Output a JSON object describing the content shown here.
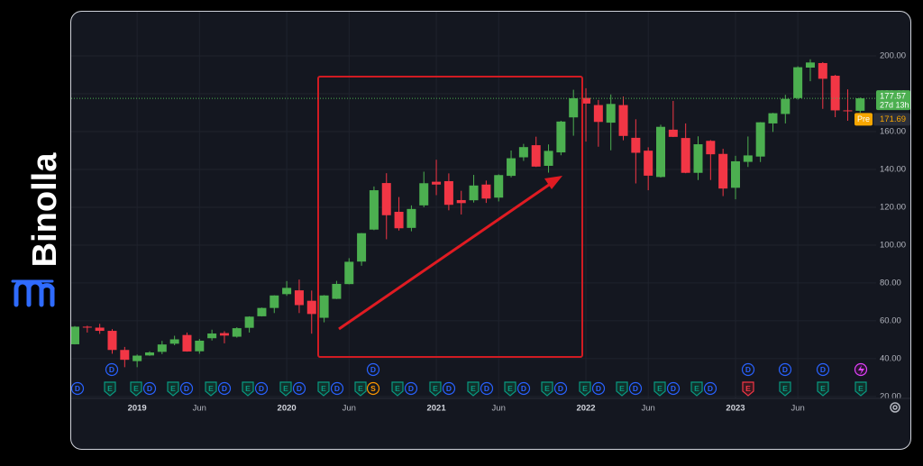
{
  "brand": "Binolla",
  "chart_data": {
    "type": "candlestick",
    "categories": [
      null,
      null,
      null,
      null,
      null,
      null,
      null,
      null,
      null,
      null,
      null,
      null,
      null,
      null,
      null,
      null,
      null,
      null,
      null,
      null,
      null,
      null,
      null,
      null,
      null,
      null,
      null,
      null,
      null,
      null,
      null,
      null,
      null,
      null,
      null,
      null,
      null,
      null,
      null,
      null,
      null,
      null,
      null,
      null,
      null,
      null,
      null,
      null,
      null,
      null,
      null,
      null,
      null,
      null,
      null,
      null,
      null,
      null,
      null,
      null,
      null,
      null,
      null,
      null
    ],
    "open": [
      47.6,
      56.9,
      56.4,
      54.7,
      44.6,
      38.7,
      41.7,
      43.6,
      47.9,
      52.5,
      43.9,
      50.8,
      53.5,
      51.6,
      56.3,
      62.4,
      66.8,
      74.1,
      76.1,
      70.6,
      61.6,
      71.6,
      79.4,
      91.3,
      108.2,
      132.8,
      117.6,
      109.1,
      121.0,
      133.5,
      133.8,
      123.8,
      123.7,
      132.0,
      125.1,
      136.6,
      146.4,
      152.8,
      141.9,
      149.0,
      167.5,
      177.8,
      174.0,
      164.7,
      174.0,
      156.7,
      149.9,
      136.0,
      161.0,
      156.6,
      138.2,
      155.1,
      148.2,
      130.3,
      144.0,
      146.8,
      164.3,
      169.3,
      177.7,
      193.8,
      196.2,
      189.5,
      171.2,
      171.0
    ],
    "high": [
      57.2,
      57.4,
      58.4,
      55.6,
      46.2,
      42.2,
      43.9,
      49.4,
      52.1,
      53.8,
      50.4,
      55.3,
      54.5,
      56.6,
      62.4,
      67.0,
      73.5,
      81.0,
      81.8,
      76.0,
      73.6,
      81.1,
      93.1,
      106.4,
      131.0,
      138.0,
      125.4,
      121.0,
      138.8,
      145.1,
      137.9,
      128.7,
      137.1,
      134.1,
      137.4,
      150.0,
      153.5,
      157.3,
      153.2,
      165.7,
      182.1,
      182.9,
      176.7,
      179.6,
      178.5,
      166.5,
      151.7,
      163.6,
      176.2,
      164.3,
      157.5,
      155.5,
      150.9,
      147.2,
      157.4,
      165.0,
      169.9,
      179.4,
      194.5,
      198.2,
      196.7,
      190.0,
      182.3,
      178.0
    ],
    "low": [
      47.5,
      53.8,
      53.1,
      42.6,
      35.5,
      35.5,
      41.5,
      42.4,
      47.1,
      43.7,
      42.6,
      49.6,
      48.1,
      51.1,
      53.8,
      62.3,
      64.1,
      73.2,
      64.1,
      53.2,
      59.2,
      71.5,
      79.3,
      89.1,
      107.9,
      103.1,
      107.7,
      107.3,
      120.0,
      126.4,
      118.4,
      116.2,
      122.5,
      122.3,
      123.1,
      135.8,
      144.5,
      141.3,
      138.3,
      147.5,
      157.8,
      154.7,
      152.0,
      150.1,
      155.4,
      132.6,
      129.0,
      135.7,
      157.1,
      138.0,
      134.4,
      134.4,
      125.9,
      124.2,
      141.3,
      143.9,
      159.8,
      164.3,
      176.9,
      186.6,
      172.0,
      167.6,
      165.7,
      169.9
    ],
    "close": [
      56.9,
      56.4,
      54.7,
      44.6,
      39.4,
      41.6,
      43.3,
      47.5,
      50.2,
      43.8,
      49.5,
      53.3,
      52.2,
      56.1,
      62.2,
      66.8,
      73.4,
      77.4,
      68.3,
      63.6,
      73.4,
      79.5,
      91.2,
      106.3,
      129.0,
      115.8,
      108.9,
      119.1,
      132.7,
      132.0,
      121.3,
      122.2,
      131.5,
      124.6,
      137.0,
      145.9,
      151.8,
      141.5,
      149.8,
      165.3,
      177.6,
      174.8,
      165.1,
      174.6,
      157.7,
      148.8,
      136.7,
      162.5,
      157.2,
      138.2,
      153.3,
      148.0,
      129.9,
      144.3,
      147.4,
      164.9,
      169.7,
      177.3,
      194.0,
      196.5,
      187.9,
      171.2,
      170.8,
      177.57
    ],
    "up_color": "#4caf50",
    "down_color": "#f23645",
    "ylim": [
      19,
      220
    ],
    "yticks": [
      {
        "value": 20,
        "label": "20.00"
      },
      {
        "value": 40,
        "label": "40.00"
      },
      {
        "value": 60,
        "label": "60.00"
      },
      {
        "value": 80,
        "label": "80.00"
      },
      {
        "value": 100,
        "label": "100.00"
      },
      {
        "value": 120,
        "label": "120.00"
      },
      {
        "value": 140,
        "label": "140.00"
      },
      {
        "value": 160,
        "label": "160.00"
      },
      {
        "value": 180,
        "label": "180.00"
      },
      {
        "value": 200,
        "label": "200.00"
      }
    ],
    "xticks": [
      {
        "value": 5,
        "label": "2019"
      },
      {
        "value": 10,
        "label": "Jun"
      },
      {
        "value": 17,
        "label": "2020"
      },
      {
        "value": 22,
        "label": "Jun"
      },
      {
        "value": 29,
        "label": "2021"
      },
      {
        "value": 34,
        "label": "Jun"
      },
      {
        "value": 41,
        "label": "2022"
      },
      {
        "value": 46,
        "label": "Jun"
      },
      {
        "value": 53,
        "label": "2023"
      },
      {
        "value": 58,
        "label": "Jun"
      }
    ],
    "grid": true,
    "last_price": 177.57,
    "countdown": "27d 13h",
    "pre_market": {
      "label": "Pre",
      "value": 171.69
    },
    "events_row1": [
      "D",
      "D",
      "D",
      "D",
      "D"
    ],
    "events_row2": [
      "D",
      "E",
      "E",
      "D",
      "E",
      "D",
      "E",
      "D",
      "E",
      "D",
      "E",
      "D",
      "E",
      "D",
      "E",
      "S",
      "E",
      "D",
      "E",
      "D",
      "E",
      "D",
      "E",
      "D",
      "E",
      "D",
      "E",
      "D",
      "E",
      "D",
      "E",
      "D",
      "E",
      "D",
      "E",
      "E",
      "E",
      "E"
    ]
  }
}
